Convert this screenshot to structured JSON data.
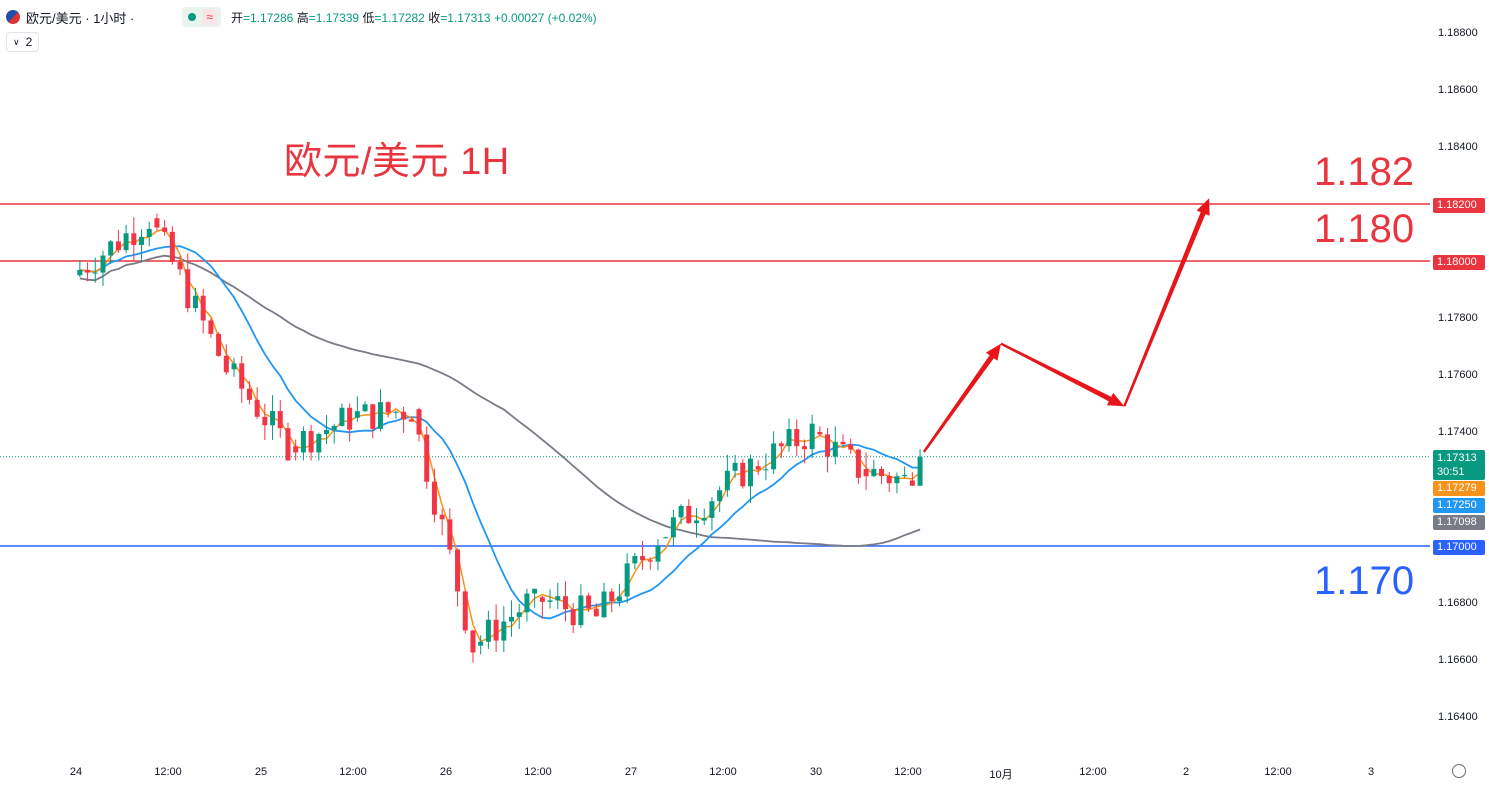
{
  "header": {
    "symbol": "欧元/美元 · 1小时 ·",
    "approx_icon": "≈",
    "open_label": "开",
    "open_value": "=1.17286",
    "high_label": "高",
    "high_value": "=1.17339",
    "low_label": "低",
    "low_value": "=1.17282",
    "close_label": "收",
    "close_value": "=1.17313",
    "change": "+0.00027 (+0.02%)",
    "indicator_count": "2",
    "flag_icon": "eur-usd-flag-icon",
    "chevron_icon": "chevron-down-icon"
  },
  "annotation": {
    "title": "欧元/美元 1H",
    "target_1": "1.182",
    "target_2": "1.180",
    "support": "1.170"
  },
  "colors": {
    "up": "#089981",
    "down": "#f23645",
    "ma_fast": "#f7931a",
    "ma_mid": "#2196f3",
    "ma_slow": "#787b86",
    "resistance": "#e8353f",
    "support": "#2962ff",
    "arrow": "#e8161b"
  },
  "price_axis": {
    "ticks": [
      "1.18800",
      "1.18600",
      "1.18400",
      "1.17800",
      "1.17600",
      "1.17400",
      "1.16800",
      "1.16600",
      "1.16400"
    ],
    "tags": {
      "res_high": "1.18200",
      "res_low": "1.18000",
      "last": "1.17313",
      "countdown": "30:51",
      "ma_fast": "1.17279",
      "ma_mid": "1.17250",
      "ma_slow": "1.17098",
      "support": "1.17000"
    }
  },
  "time_axis": {
    "labels": [
      "24",
      "12:00",
      "25",
      "12:00",
      "26",
      "12:00",
      "27",
      "12:00",
      "30",
      "12:00",
      "10月",
      "12:00",
      "2",
      "12:00",
      "3"
    ]
  },
  "settings_icon": "settings-icon",
  "chart_data": {
    "type": "candlestick",
    "symbol": "欧元/美元",
    "timeframe": "1小时",
    "y_range": [
      1.1635,
      1.1895
    ],
    "horizontal_lines": [
      1.182,
      1.18,
      1.17
    ],
    "last_price": 1.17313,
    "projection_path": [
      {
        "t": "09-30 14:00",
        "price": 1.1733
      },
      {
        "t": "10-01 00:00",
        "price": 1.1771
      },
      {
        "t": "10-01 16:00",
        "price": 1.1749
      },
      {
        "t": "10-02 03:00",
        "price": 1.1822
      }
    ],
    "moving_averages_last": {
      "fast": 1.17279,
      "mid": 1.1725,
      "slow": 1.17098
    },
    "segments": [
      {
        "from": "09-24 00:00",
        "to": "09-24 10:00",
        "start": 1.1795,
        "end": 1.1815,
        "min": 1.1778,
        "max": 1.182
      },
      {
        "from": "09-24 10:00",
        "to": "09-24 20:00",
        "start": 1.1815,
        "end": 1.1762,
        "min": 1.176,
        "max": 1.182
      },
      {
        "from": "09-24 20:00",
        "to": "09-25 04:00",
        "start": 1.1762,
        "end": 1.1735,
        "min": 1.173,
        "max": 1.1768
      },
      {
        "from": "09-25 04:00",
        "to": "09-25 12:00",
        "start": 1.1735,
        "end": 1.1745,
        "min": 1.173,
        "max": 1.175
      },
      {
        "from": "09-25 12:00",
        "to": "09-25 20:00",
        "start": 1.1745,
        "end": 1.1748,
        "min": 1.1732,
        "max": 1.1755
      },
      {
        "from": "09-25 20:00",
        "to": "09-26 04:00",
        "start": 1.1748,
        "end": 1.1665,
        "min": 1.1655,
        "max": 1.175
      },
      {
        "from": "09-26 04:00",
        "to": "09-26 12:00",
        "start": 1.1665,
        "end": 1.1682,
        "min": 1.1662,
        "max": 1.1685
      },
      {
        "from": "09-26 12:00",
        "to": "09-26 20:00",
        "start": 1.1682,
        "end": 1.1675,
        "min": 1.1665,
        "max": 1.169
      },
      {
        "from": "09-26 20:00",
        "to": "09-27 04:00",
        "start": 1.1675,
        "end": 1.1703,
        "min": 1.1668,
        "max": 1.1706
      },
      {
        "from": "09-27 04:00",
        "to": "09-27 16:00",
        "start": 1.1703,
        "end": 1.1728,
        "min": 1.17,
        "max": 1.1732
      },
      {
        "from": "09-27 16:00",
        "to": "09-30 00:00",
        "start": 1.1728,
        "end": 1.174,
        "min": 1.1712,
        "max": 1.1755
      },
      {
        "from": "09-30 00:00",
        "to": "09-30 06:00",
        "start": 1.174,
        "end": 1.1727,
        "min": 1.172,
        "max": 1.1742
      },
      {
        "from": "09-30 06:00",
        "to": "09-30 12:00",
        "start": 1.1727,
        "end": 1.1723,
        "min": 1.1716,
        "max": 1.1733
      },
      {
        "from": "09-30 12:00",
        "to": "09-30 14:00",
        "start": 1.1723,
        "end": 1.17313,
        "min": 1.1721,
        "max": 1.17339
      }
    ]
  }
}
